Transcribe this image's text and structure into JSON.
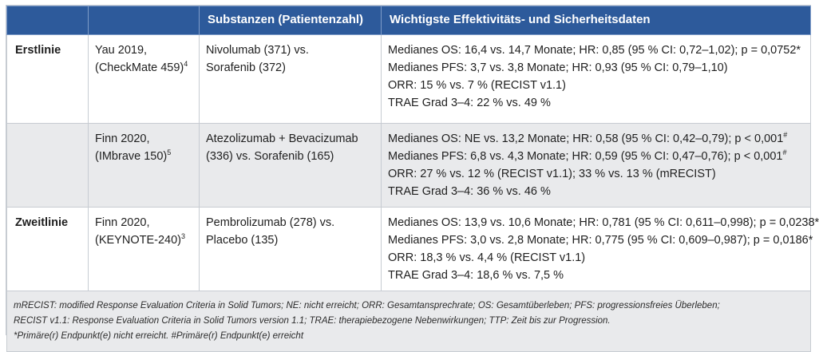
{
  "header": {
    "col1": "",
    "col2": "",
    "col3": "Substanzen (Patientenzahl)",
    "col4": "Wichtigste Effektivitäts- und Sicherheitsdaten"
  },
  "rows": [
    {
      "category": "Erstlinie",
      "study": [
        "Yau 2019,",
        "(CheckMate 459)"
      ],
      "study_ref": "4",
      "substances": [
        "Nivolumab (371) vs.",
        "Sorafenib (372)"
      ],
      "data": [
        {
          "text": "Medianes OS: 16,4 vs. 14,7 Monate; HR: 0,85 (95 % CI: 0,72–1,02); p = 0,0752*",
          "mark": ""
        },
        {
          "text": "Medianes PFS: 3,7 vs. 3,8 Monate; HR: 0,93 (95 % CI: 0,79–1,10)",
          "mark": ""
        },
        {
          "text": "ORR: 15 % vs. 7 % (RECIST v1.1)",
          "mark": ""
        },
        {
          "text": "TRAE Grad 3–4: 22 % vs. 49 %",
          "mark": ""
        }
      ]
    },
    {
      "category": "",
      "study": [
        "Finn 2020,",
        "(IMbrave 150)"
      ],
      "study_ref": "5",
      "substances": [
        "Atezolizumab + Bevacizumab",
        "(336) vs. Sorafenib (165)"
      ],
      "data": [
        {
          "text": "Medianes OS: NE vs. 13,2 Monate; HR: 0,58 (95 % CI: 0,42–0,79); p < 0,001",
          "mark": "#"
        },
        {
          "text": "Medianes PFS: 6,8 vs. 4,3 Monate; HR: 0,59 (95 % CI: 0,47–0,76); p < 0,001",
          "mark": "#"
        },
        {
          "text": "ORR: 27 % vs. 12 % (RECIST v1.1); 33 % vs. 13 % (mRECIST)",
          "mark": ""
        },
        {
          "text": "TRAE Grad 3–4: 36 % vs. 46 %",
          "mark": ""
        }
      ]
    },
    {
      "category": "Zweitlinie",
      "study": [
        "Finn 2020,",
        "(KEYNOTE-240)"
      ],
      "study_ref": "3",
      "substances": [
        "Pembrolizumab (278) vs.",
        "Placebo (135)"
      ],
      "data": [
        {
          "text": "Medianes OS: 13,9 vs. 10,6 Monate; HR: 0,781 (95 % CI: 0,611–0,998); p = 0,0238*",
          "mark": ""
        },
        {
          "text": "Medianes PFS: 3,0 vs. 2,8 Monate; HR: 0,775 (95 % CI: 0,609–0,987); p = 0,0186*",
          "mark": ""
        },
        {
          "text": "ORR: 18,3 % vs. 4,4 % (RECIST v1.1)",
          "mark": ""
        },
        {
          "text": "TRAE Grad 3–4: 18,6 % vs. 7,5 %",
          "mark": ""
        }
      ]
    }
  ],
  "footnotes": [
    "mRECIST: modified Response Evaluation Criteria in Solid Tumors; NE: nicht erreicht; ORR: Gesamtansprechrate; OS: Gesamtüberleben; PFS: progressionsfreies Überleben;",
    "RECIST v1.1: Response Evaluation Criteria in Solid Tumors version 1.1; TRAE: therapiebezogene Nebenwirkungen; TTP: Zeit bis zur Progression.",
    "*Primäre(r) Endpunkt(e) nicht erreicht. #Primäre(r) Endpunkt(e) erreicht"
  ]
}
